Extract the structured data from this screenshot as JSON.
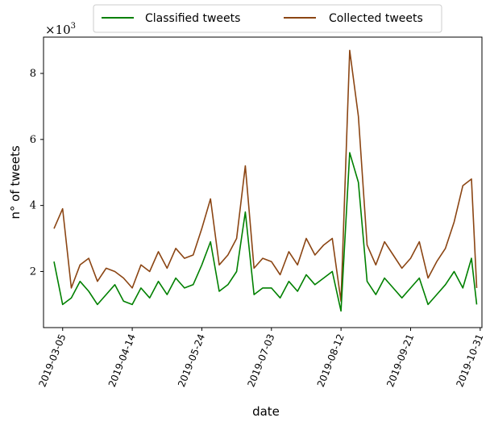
{
  "chart_data": {
    "type": "line",
    "xlabel": "date",
    "ylabel": "n° of tweets",
    "y_multiplier_prefix": "×10",
    "y_multiplier_exponent": "3",
    "xlim": [
      "2019-02-22",
      "2019-11-01"
    ],
    "ylim": [
      0.3,
      9.1
    ],
    "yticks": [
      2,
      4,
      6,
      8
    ],
    "xticks": [
      "2019-03-05",
      "2019-04-14",
      "2019-05-24",
      "2019-07-03",
      "2019-08-12",
      "2019-09-21",
      "2019-10-31"
    ],
    "legend": {
      "placement": "top-center",
      "entries": [
        "Classified tweets",
        "Collected tweets"
      ]
    },
    "grid": false,
    "x": [
      "2019-02-28",
      "2019-03-05",
      "2019-03-10",
      "2019-03-15",
      "2019-03-20",
      "2019-03-25",
      "2019-03-30",
      "2019-04-04",
      "2019-04-09",
      "2019-04-14",
      "2019-04-19",
      "2019-04-24",
      "2019-04-29",
      "2019-05-04",
      "2019-05-09",
      "2019-05-14",
      "2019-05-19",
      "2019-05-24",
      "2019-05-29",
      "2019-06-03",
      "2019-06-08",
      "2019-06-13",
      "2019-06-18",
      "2019-06-23",
      "2019-06-28",
      "2019-07-03",
      "2019-07-08",
      "2019-07-13",
      "2019-07-18",
      "2019-07-23",
      "2019-07-28",
      "2019-08-02",
      "2019-08-07",
      "2019-08-12",
      "2019-08-17",
      "2019-08-22",
      "2019-08-27",
      "2019-09-01",
      "2019-09-06",
      "2019-09-11",
      "2019-09-16",
      "2019-09-21",
      "2019-09-26",
      "2019-10-01",
      "2019-10-06",
      "2019-10-11",
      "2019-10-16",
      "2019-10-21",
      "2019-10-26",
      "2019-10-29"
    ],
    "series": [
      {
        "name": "Classified tweets",
        "color": "#008000",
        "values": [
          2.3,
          1.0,
          1.2,
          1.7,
          1.4,
          1.0,
          1.3,
          1.6,
          1.1,
          1.0,
          1.5,
          1.2,
          1.7,
          1.3,
          1.8,
          1.5,
          1.6,
          2.2,
          2.9,
          1.4,
          1.6,
          2.0,
          3.8,
          1.3,
          1.5,
          1.5,
          1.2,
          1.7,
          1.4,
          1.9,
          1.6,
          1.8,
          2.0,
          0.8,
          5.6,
          4.7,
          1.7,
          1.3,
          1.8,
          1.5,
          1.2,
          1.5,
          1.8,
          1.0,
          1.3,
          1.6,
          2.0,
          1.5,
          2.4,
          1.0
        ]
      },
      {
        "name": "Collected tweets",
        "color": "#8b4513",
        "values": [
          3.3,
          3.9,
          1.5,
          2.2,
          2.4,
          1.7,
          2.1,
          2.0,
          1.8,
          1.5,
          2.2,
          2.0,
          2.6,
          2.1,
          2.7,
          2.4,
          2.5,
          3.3,
          4.2,
          2.2,
          2.5,
          3.0,
          5.2,
          2.1,
          2.4,
          2.3,
          1.9,
          2.6,
          2.2,
          3.0,
          2.5,
          2.8,
          3.0,
          1.1,
          8.7,
          6.7,
          2.8,
          2.2,
          2.9,
          2.5,
          2.1,
          2.4,
          2.9,
          1.8,
          2.3,
          2.7,
          3.5,
          4.6,
          4.8,
          1.5
        ]
      }
    ]
  }
}
